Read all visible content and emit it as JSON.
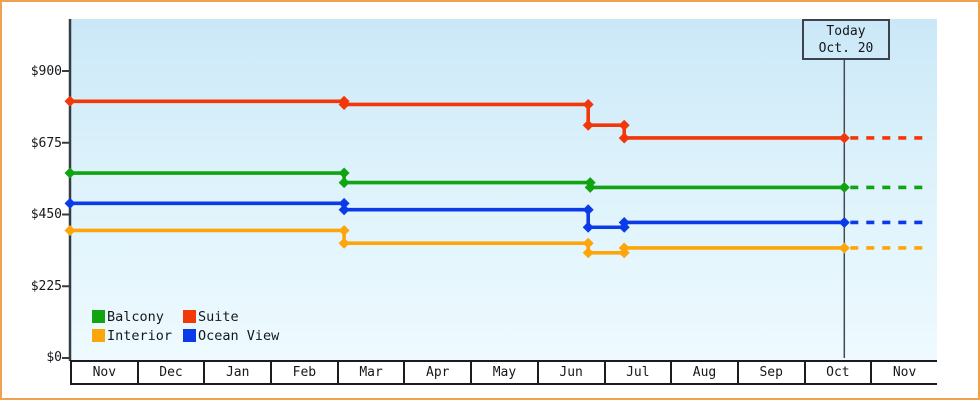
{
  "window": {
    "background": "#ffffff",
    "frame_color": "#f0a24e"
  },
  "chart_data": {
    "type": "line",
    "subtype": "step-price-history",
    "title": "",
    "price_axis": {
      "ticks": [
        {
          "label": "$900",
          "value": 900
        },
        {
          "label": "$675",
          "value": 675
        },
        {
          "label": "$450",
          "value": 450
        },
        {
          "label": "$225",
          "value": 225
        },
        {
          "label": "$0",
          "value": 0
        }
      ],
      "range": [
        0,
        1065
      ],
      "grid": false
    },
    "months": [
      "Nov",
      "Dec",
      "Jan",
      "Feb",
      "Mar",
      "Apr",
      "May",
      "Jun",
      "Jul",
      "Aug",
      "Sep",
      "Oct",
      "Nov"
    ],
    "today": {
      "label": "Today",
      "date": "Oct. 20",
      "month_position": 11.61
    },
    "forecast_end_month": 12.9,
    "series": [
      {
        "name": "Suite",
        "color": "#f23708",
        "current_price": 690,
        "points": [
          {
            "month": 0,
            "price": 805
          },
          {
            "month": 4.11,
            "price": 795
          },
          {
            "month": 7.77,
            "price": 730
          },
          {
            "month": 8.31,
            "price": 690
          }
        ]
      },
      {
        "name": "Balcony",
        "color": "#12a312",
        "current_price": 535,
        "points": [
          {
            "month": 0,
            "price": 580
          },
          {
            "month": 4.11,
            "price": 550
          },
          {
            "month": 7.8,
            "price": 535
          }
        ]
      },
      {
        "name": "Ocean View",
        "color": "#0b3be8",
        "current_price": 425,
        "points": [
          {
            "month": 0,
            "price": 485
          },
          {
            "month": 4.11,
            "price": 465
          },
          {
            "month": 7.77,
            "price": 410
          },
          {
            "month": 8.31,
            "price": 425
          }
        ]
      },
      {
        "name": "Interior",
        "color": "#fca60b",
        "current_price": 345,
        "points": [
          {
            "month": 0,
            "price": 400
          },
          {
            "month": 4.11,
            "price": 360
          },
          {
            "month": 7.77,
            "price": 330
          },
          {
            "month": 8.31,
            "price": 345
          }
        ]
      }
    ],
    "legend": [
      {
        "label": "Balcony",
        "color": "#12a312"
      },
      {
        "label": "Suite",
        "color": "#f23708"
      },
      {
        "label": "Interior",
        "color": "#fca60b"
      },
      {
        "label": "Ocean View",
        "color": "#0b3be8"
      }
    ],
    "legend_position": "bottom-left-inside"
  }
}
